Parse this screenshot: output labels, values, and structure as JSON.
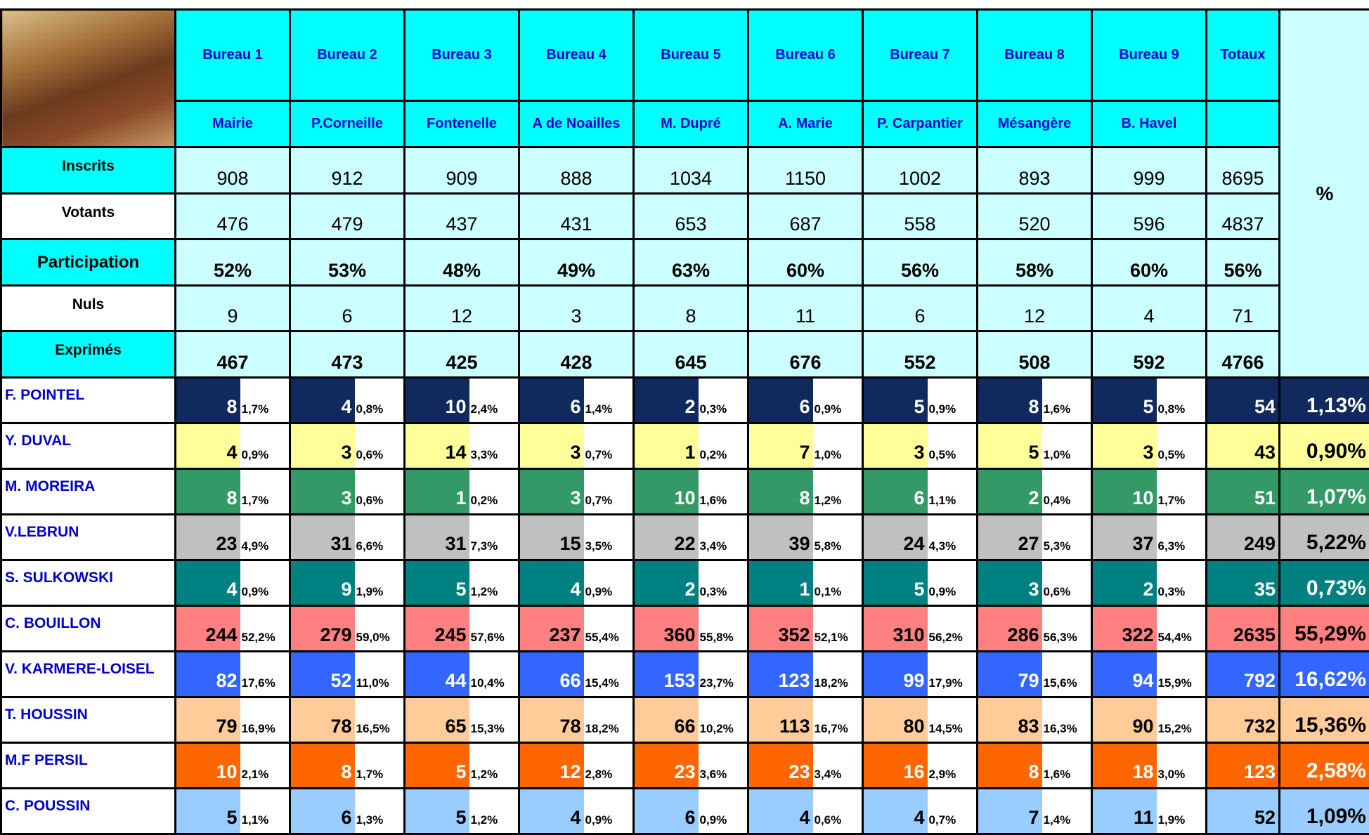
{
  "table": {
    "bureaus": [
      {
        "label": "Bureau 1",
        "place": "Mairie"
      },
      {
        "label": "Bureau 2",
        "place": "P.Corneille"
      },
      {
        "label": "Bureau 3",
        "place": "Fontenelle"
      },
      {
        "label": "Bureau 4",
        "place": "A de Noailles"
      },
      {
        "label": "Bureau 5",
        "place": "M. Dupré"
      },
      {
        "label": "Bureau 6",
        "place": "A. Marie"
      },
      {
        "label": "Bureau 7",
        "place": "P. Carpantier"
      },
      {
        "label": "Bureau 8",
        "place": "Mésangère"
      },
      {
        "label": "Bureau 9",
        "place": "B. Havel"
      }
    ],
    "totals_label": "Totaux",
    "percent_label": "%",
    "stats": [
      {
        "label": "Inscrits",
        "values": [
          908,
          912,
          909,
          888,
          1034,
          1150,
          1002,
          893,
          999
        ],
        "total": 8695
      },
      {
        "label": "Votants",
        "values": [
          476,
          479,
          437,
          431,
          653,
          687,
          558,
          520,
          596
        ],
        "total": 4837
      },
      {
        "label": "Participation",
        "values": [
          "52%",
          "53%",
          "48%",
          "49%",
          "63%",
          "60%",
          "56%",
          "58%",
          "60%"
        ],
        "total": "56%"
      },
      {
        "label": "Nuls",
        "values": [
          9,
          6,
          12,
          3,
          8,
          11,
          6,
          12,
          4
        ],
        "total": 71
      },
      {
        "label": "Exprimés",
        "values": [
          467,
          473,
          425,
          428,
          645,
          676,
          552,
          508,
          592
        ],
        "total": 4766
      }
    ],
    "candidates": [
      {
        "name": "F. POINTEL",
        "color": "#102a5e",
        "text_color": "#ffffff",
        "votes": [
          8,
          4,
          10,
          6,
          2,
          6,
          5,
          8,
          5
        ],
        "pcts": [
          "1,7%",
          "0,8%",
          "2,4%",
          "1,4%",
          "0,3%",
          "0,9%",
          "0,9%",
          "1,6%",
          "0,8%"
        ],
        "total": 54,
        "total_pct": "1,13%"
      },
      {
        "name": "Y. DUVAL",
        "color": "#ffff99",
        "text_color": "#000000",
        "votes": [
          4,
          3,
          14,
          3,
          1,
          7,
          3,
          5,
          3
        ],
        "pcts": [
          "0,9%",
          "0,6%",
          "3,3%",
          "0,7%",
          "0,2%",
          "1,0%",
          "0,5%",
          "1,0%",
          "0,5%"
        ],
        "total": 43,
        "total_pct": "0,90%"
      },
      {
        "name": "M. MOREIRA",
        "color": "#339966",
        "text_color": "#ffffff",
        "votes": [
          8,
          3,
          1,
          3,
          10,
          8,
          6,
          2,
          10
        ],
        "pcts": [
          "1,7%",
          "0,6%",
          "0,2%",
          "0,7%",
          "1,6%",
          "1,2%",
          "1,1%",
          "0,4%",
          "1,7%"
        ],
        "total": 51,
        "total_pct": "1,07%"
      },
      {
        "name": "V.LEBRUN",
        "color": "#c0c0c0",
        "text_color": "#000000",
        "votes": [
          23,
          31,
          31,
          15,
          22,
          39,
          24,
          27,
          37
        ],
        "pcts": [
          "4,9%",
          "6,6%",
          "7,3%",
          "3,5%",
          "3,4%",
          "5,8%",
          "4,3%",
          "5,3%",
          "6,3%"
        ],
        "total": 249,
        "total_pct": "5,22%"
      },
      {
        "name": "S. SULKOWSKI",
        "color": "#008080",
        "text_color": "#ffffff",
        "votes": [
          4,
          9,
          5,
          4,
          2,
          1,
          5,
          3,
          2
        ],
        "pcts": [
          "0,9%",
          "1,9%",
          "1,2%",
          "0,9%",
          "0,3%",
          "0,1%",
          "0,9%",
          "0,6%",
          "0,3%"
        ],
        "total": 35,
        "total_pct": "0,73%"
      },
      {
        "name": "C. BOUILLON",
        "color": "#ff8080",
        "text_color": "#000000",
        "votes": [
          244,
          279,
          245,
          237,
          360,
          352,
          310,
          286,
          322
        ],
        "pcts": [
          "52,2%",
          "59,0%",
          "57,6%",
          "55,4%",
          "55,8%",
          "52,1%",
          "56,2%",
          "56,3%",
          "54,4%"
        ],
        "total": 2635,
        "total_pct": "55,29%"
      },
      {
        "name": "V. KARMERE-LOISEL",
        "color": "#3366ff",
        "text_color": "#ffffff",
        "votes": [
          82,
          52,
          44,
          66,
          153,
          123,
          99,
          79,
          94
        ],
        "pcts": [
          "17,6%",
          "11,0%",
          "10,4%",
          "15,4%",
          "23,7%",
          "18,2%",
          "17,9%",
          "15,6%",
          "15,9%"
        ],
        "total": 792,
        "total_pct": "16,62%"
      },
      {
        "name": "T. HOUSSIN",
        "color": "#ffcc99",
        "text_color": "#000000",
        "votes": [
          79,
          78,
          65,
          78,
          66,
          113,
          80,
          83,
          90
        ],
        "pcts": [
          "16,9%",
          "16,5%",
          "15,3%",
          "18,2%",
          "10,2%",
          "16,7%",
          "14,5%",
          "16,3%",
          "15,2%"
        ],
        "total": 732,
        "total_pct": "15,36%"
      },
      {
        "name": "M.F PERSIL",
        "color": "#ff6600",
        "text_color": "#ffffff",
        "votes": [
          10,
          8,
          5,
          12,
          23,
          23,
          16,
          8,
          18
        ],
        "pcts": [
          "2,1%",
          "1,7%",
          "1,2%",
          "2,8%",
          "3,6%",
          "3,4%",
          "2,9%",
          "1,6%",
          "3,0%"
        ],
        "total": 123,
        "total_pct": "2,58%"
      },
      {
        "name": "C. POUSSIN",
        "color": "#99ccff",
        "text_color": "#000000",
        "votes": [
          5,
          6,
          5,
          4,
          6,
          4,
          4,
          7,
          11
        ],
        "pcts": [
          "1,1%",
          "1,3%",
          "1,2%",
          "0,9%",
          "0,9%",
          "0,6%",
          "0,7%",
          "1,4%",
          "1,9%"
        ],
        "total": 52,
        "total_pct": "1,09%"
      }
    ]
  }
}
